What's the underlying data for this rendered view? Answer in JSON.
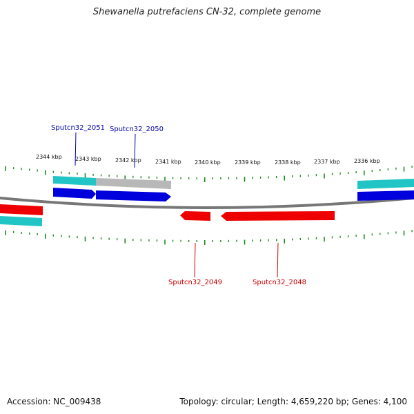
{
  "title": "Shewanella putrefaciens CN-32, complete genome",
  "footer": {
    "accession": "Accession: NC_009438",
    "summary": "Topology: circular; Length: 4,659,220 bp; Genes: 4,100"
  },
  "scale_labels": [
    "2344 kbp",
    "2343 kbp",
    "2342 kbp",
    "2341 kbp",
    "2340 kbp",
    "2339 kbp",
    "2338 kbp",
    "2337 kbp",
    "2336 kbp"
  ],
  "gene_labels": {
    "g2051": "Sputcn32_2051",
    "g2050": "Sputcn32_2050",
    "g2049": "Sputcn32_2049",
    "g2048": "Sputcn32_2048"
  },
  "colors": {
    "forward_cds": "#0000dd",
    "reverse_cds": "#ee0000",
    "cyan_track": "#22c5c5",
    "gray_track": "#b8b8b8",
    "backbone": "#777777",
    "ticks": "#1a8a1a",
    "forward_label": "#0000aa",
    "reverse_label": "#cc0000"
  }
}
